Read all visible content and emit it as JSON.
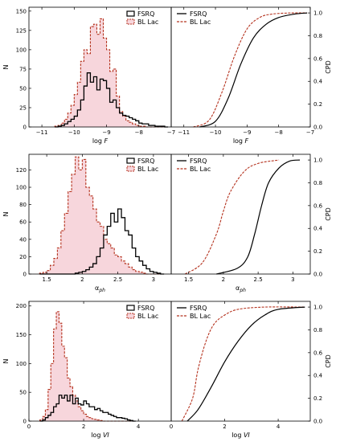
{
  "colors": {
    "fsrq": "#000000",
    "bllac": "#b5331f",
    "bllac_fill": "#f7d6dc"
  },
  "legend": {
    "fsrq": "FSRQ",
    "bllac": "BL Lac"
  },
  "labels": {
    "y_hist": "N",
    "y_cdf": "CPD"
  },
  "chart_data": [
    {
      "type": "histogram+cdf",
      "xlabel": "log F",
      "xlabel_base": "log",
      "xlabel_var": "F",
      "xlabel_sub": "",
      "xlim": [
        -11.4,
        -7.0
      ],
      "xticks": [
        -11,
        -10,
        -9,
        -8,
        -7
      ],
      "hist_ylim": [
        0,
        155
      ],
      "hist_yticks": [
        0,
        25,
        50,
        75,
        100,
        125,
        150
      ],
      "cdf_ylim": [
        0,
        1.05
      ],
      "cdf_yticks": [
        0,
        0.2,
        0.4,
        0.6,
        0.8,
        1.0
      ],
      "bins_start": -10.6,
      "bin_width": 0.1,
      "fsrq_counts": [
        0,
        1,
        2,
        4,
        7,
        10,
        14,
        22,
        35,
        53,
        70,
        58,
        65,
        48,
        62,
        60,
        50,
        32,
        35,
        25,
        18,
        15,
        14,
        12,
        10,
        8,
        5,
        4,
        4,
        2,
        2,
        1,
        1,
        1,
        0
      ],
      "bllac_counts": [
        1,
        2,
        5,
        10,
        18,
        28,
        42,
        58,
        85,
        100,
        95,
        130,
        133,
        120,
        140,
        115,
        100,
        72,
        75,
        40,
        20,
        14,
        8,
        6,
        4,
        2,
        1,
        1,
        0,
        0,
        0,
        0,
        0,
        0,
        0
      ],
      "fsrq_cdf": [
        [
          -10.5,
          0
        ],
        [
          -10.0,
          0.05
        ],
        [
          -9.6,
          0.25
        ],
        [
          -9.2,
          0.55
        ],
        [
          -8.8,
          0.78
        ],
        [
          -8.4,
          0.9
        ],
        [
          -8.0,
          0.96
        ],
        [
          -7.5,
          0.99
        ],
        [
          -7.1,
          1.0
        ]
      ],
      "bllac_cdf": [
        [
          -10.7,
          0
        ],
        [
          -10.2,
          0.06
        ],
        [
          -9.8,
          0.3
        ],
        [
          -9.4,
          0.62
        ],
        [
          -9.0,
          0.86
        ],
        [
          -8.6,
          0.96
        ],
        [
          -8.2,
          0.99
        ],
        [
          -7.6,
          1.0
        ],
        [
          -7.1,
          1.0
        ]
      ]
    },
    {
      "type": "histogram+cdf",
      "xlabel": "α_ph",
      "xlabel_base": "α",
      "xlabel_var": "",
      "xlabel_sub": "ph",
      "xlim": [
        1.25,
        3.25
      ],
      "xticks": [
        1.5,
        2.0,
        2.5,
        3.0
      ],
      "hist_ylim": [
        0,
        138
      ],
      "hist_yticks": [
        0,
        20,
        40,
        60,
        80,
        100,
        120
      ],
      "cdf_ylim": [
        0,
        1.05
      ],
      "cdf_yticks": [
        0,
        0.2,
        0.4,
        0.6,
        0.8,
        1.0
      ],
      "bins_start": 1.4,
      "bin_width": 0.05,
      "fsrq_counts": [
        0,
        0,
        0,
        0,
        0,
        0,
        0,
        0,
        0,
        0,
        1,
        2,
        3,
        5,
        8,
        12,
        20,
        30,
        45,
        55,
        70,
        60,
        75,
        65,
        50,
        45,
        30,
        20,
        15,
        10,
        6,
        3,
        2,
        1,
        0
      ],
      "bllac_counts": [
        1,
        2,
        4,
        10,
        18,
        30,
        50,
        70,
        95,
        115,
        135,
        120,
        132,
        100,
        90,
        75,
        60,
        55,
        40,
        35,
        30,
        22,
        20,
        15,
        12,
        8,
        5,
        3,
        2,
        1,
        0,
        0,
        0,
        0,
        0
      ],
      "fsrq_cdf": [
        [
          1.9,
          0
        ],
        [
          2.2,
          0.05
        ],
        [
          2.35,
          0.15
        ],
        [
          2.45,
          0.35
        ],
        [
          2.55,
          0.6
        ],
        [
          2.65,
          0.8
        ],
        [
          2.8,
          0.93
        ],
        [
          2.95,
          0.99
        ],
        [
          3.1,
          1.0
        ]
      ],
      "bllac_cdf": [
        [
          1.45,
          0
        ],
        [
          1.7,
          0.1
        ],
        [
          1.9,
          0.35
        ],
        [
          2.0,
          0.55
        ],
        [
          2.1,
          0.72
        ],
        [
          2.3,
          0.9
        ],
        [
          2.5,
          0.97
        ],
        [
          2.8,
          1.0
        ]
      ]
    },
    {
      "type": "histogram+cdf",
      "xlabel": "log VI",
      "xlabel_base": "log",
      "xlabel_var": "VI",
      "xlabel_sub": "",
      "xlim": [
        0,
        5.2
      ],
      "xticks": [
        0,
        2,
        4
      ],
      "hist_ylim": [
        0,
        208
      ],
      "hist_yticks": [
        0,
        50,
        100,
        150,
        200
      ],
      "cdf_ylim": [
        0,
        1.05
      ],
      "cdf_yticks": [
        0,
        0.2,
        0.4,
        0.6,
        0.8,
        1.0
      ],
      "bins_start": 0.4,
      "bin_width": 0.1,
      "fsrq_counts": [
        0,
        2,
        6,
        10,
        15,
        25,
        30,
        45,
        40,
        45,
        35,
        45,
        30,
        40,
        30,
        28,
        35,
        30,
        25,
        25,
        20,
        22,
        18,
        15,
        15,
        12,
        10,
        8,
        6,
        6,
        5,
        4,
        2,
        1,
        0
      ],
      "bllac_counts": [
        2,
        8,
        20,
        55,
        100,
        160,
        190,
        170,
        130,
        110,
        75,
        60,
        45,
        35,
        25,
        18,
        12,
        8,
        6,
        4,
        3,
        2,
        1,
        0,
        0,
        0,
        0,
        0,
        0,
        0,
        0,
        0,
        0,
        0,
        0
      ],
      "fsrq_cdf": [
        [
          0.6,
          0
        ],
        [
          1.0,
          0.1
        ],
        [
          1.5,
          0.3
        ],
        [
          2.0,
          0.52
        ],
        [
          2.5,
          0.7
        ],
        [
          3.0,
          0.84
        ],
        [
          3.5,
          0.93
        ],
        [
          4.0,
          0.98
        ],
        [
          5.0,
          1.0
        ]
      ],
      "bllac_cdf": [
        [
          0.4,
          0
        ],
        [
          0.8,
          0.2
        ],
        [
          1.0,
          0.45
        ],
        [
          1.3,
          0.7
        ],
        [
          1.6,
          0.85
        ],
        [
          2.0,
          0.93
        ],
        [
          2.5,
          0.98
        ],
        [
          3.5,
          1.0
        ],
        [
          5.0,
          1.0
        ]
      ]
    }
  ]
}
